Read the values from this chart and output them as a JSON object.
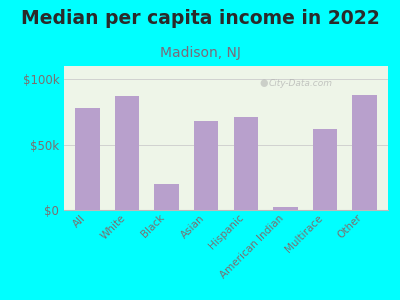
{
  "title": "Median per capita income in 2022",
  "subtitle": "Madison, NJ",
  "categories": [
    "All",
    "White",
    "Black",
    "Asian",
    "Hispanic",
    "American Indian",
    "Multirace",
    "Other"
  ],
  "values": [
    78000,
    87000,
    20000,
    68000,
    71000,
    2500,
    62000,
    88000
  ],
  "bar_color": "#b8a0cc",
  "background_outer": "#00ffff",
  "background_inner": "#eef5e8",
  "title_color": "#2a2a2a",
  "subtitle_color": "#7a6a7a",
  "tick_color": "#7a7070",
  "yticks": [
    0,
    50000,
    100000
  ],
  "ytick_labels": [
    "$0",
    "$50k",
    "$100k"
  ],
  "watermark": "City-Data.com",
  "title_fontsize": 13.5,
  "subtitle_fontsize": 10
}
